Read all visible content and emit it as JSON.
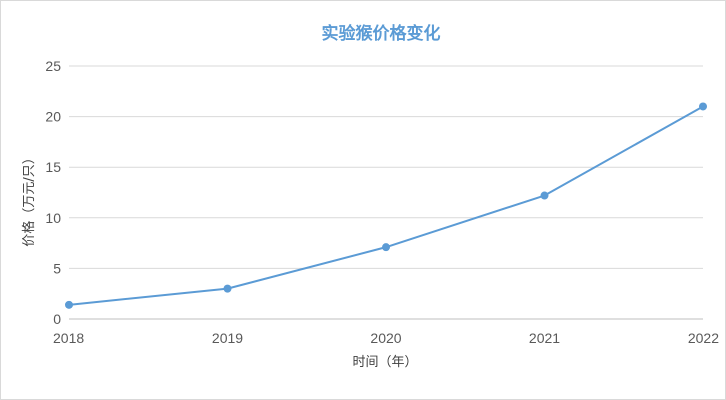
{
  "colors": {
    "title": "#5b9bd5",
    "series": "#5b9bd5",
    "grid": "#d9d9d9",
    "axis": "#bfbfbf",
    "text": "#595959"
  },
  "chart_data": {
    "type": "line",
    "title": "实验猴价格变化",
    "xlabel": "时间（年）",
    "ylabel": "价格（万元/只）",
    "categories": [
      "2018",
      "2019",
      "2020",
      "2021",
      "2022"
    ],
    "series": [
      {
        "values": [
          1.4,
          3.0,
          7.1,
          12.2,
          21.0
        ]
      }
    ],
    "ylim": [
      0,
      25
    ],
    "yticks": [
      "0",
      "5",
      "10",
      "15",
      "20",
      "25"
    ],
    "grid": true,
    "markers": true,
    "legend": "none"
  }
}
